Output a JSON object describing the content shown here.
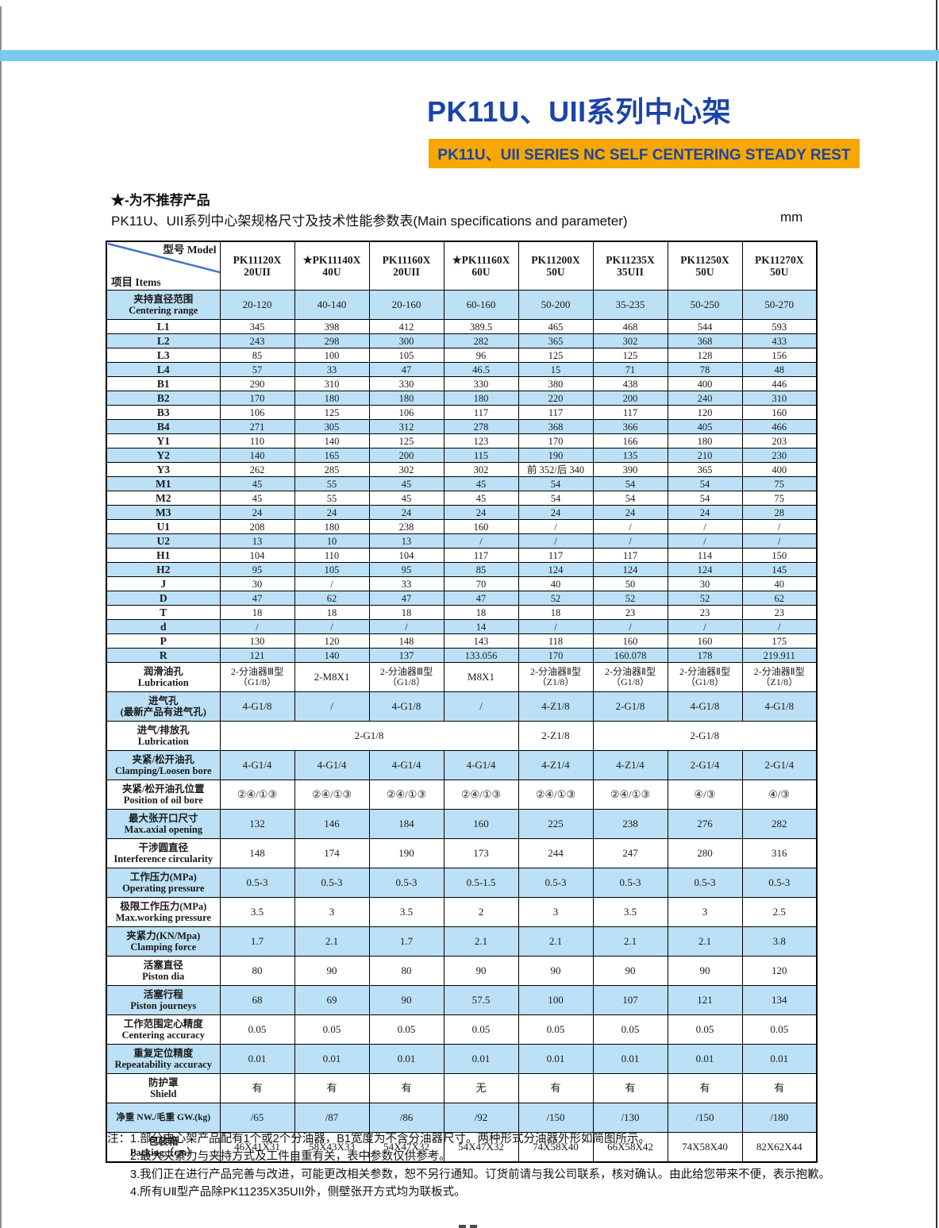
{
  "header": {
    "title_cn": "PK11U、UII系列中心架",
    "banner_en": "PK11U、UII SERIES NC SELF CENTERING STEADY REST",
    "star_note": "★-为不推荐产品",
    "table_caption": "PK11U、UII系列中心架规格尺寸及技术性能参数表(Main specifications and parameter)",
    "unit": "mm"
  },
  "colors": {
    "top_bar": "#7cc9ee",
    "banner_bg": "#f6a800",
    "title_blue": "#1b44a8",
    "row_blue": "#bce0f5",
    "diagonal_blue": "#4472c4",
    "j_value_blue": "#4472c4"
  },
  "table": {
    "corner_top": "型号 Model",
    "corner_bottom": "项目 Items",
    "columns": [
      {
        "line1": "PK11120X",
        "line2": "20UII"
      },
      {
        "line1": "★PK11140X",
        "line2": "40U"
      },
      {
        "line1": "PK11160X",
        "line2": "20UII"
      },
      {
        "line1": "★PK11160X",
        "line2": "60U"
      },
      {
        "line1": "PK11200X",
        "line2": "50U"
      },
      {
        "line1": "PK11235X",
        "line2": "35UII"
      },
      {
        "line1": "PK11250X",
        "line2": "50U"
      },
      {
        "line1": "PK11270X",
        "line2": "50U"
      }
    ],
    "rows": [
      {
        "label": "夹持直径范围\nCentering range",
        "values": [
          "20-120",
          "40-140",
          "20-160",
          "60-160",
          "50-200",
          "35-235",
          "50-250",
          "50-270"
        ]
      },
      {
        "label": "L1",
        "values": [
          "345",
          "398",
          "412",
          "389.5",
          "465",
          "468",
          "544",
          "593"
        ]
      },
      {
        "label": "L2",
        "values": [
          "243",
          "298",
          "300",
          "282",
          "365",
          "302",
          "368",
          "433"
        ]
      },
      {
        "label": "L3",
        "values": [
          "85",
          "100",
          "105",
          "96",
          "125",
          "125",
          "128",
          "156"
        ]
      },
      {
        "label": "L4",
        "values": [
          "57",
          "33",
          "47",
          "46.5",
          "15",
          "71",
          "78",
          "48"
        ]
      },
      {
        "label": "B1",
        "values": [
          "290",
          "310",
          "330",
          "330",
          "380",
          "438",
          "400",
          "446"
        ]
      },
      {
        "label": "B2",
        "values": [
          "170",
          "180",
          "180",
          "180",
          "220",
          "200",
          "240",
          "310"
        ]
      },
      {
        "label": "B3",
        "values": [
          "106",
          "125",
          "106",
          "117",
          "117",
          "117",
          "120",
          "160"
        ]
      },
      {
        "label": "B4",
        "values": [
          "271",
          "305",
          "312",
          "278",
          "368",
          "366",
          "405",
          "466"
        ]
      },
      {
        "label": "Y1",
        "values": [
          "110",
          "140",
          "125",
          "123",
          "170",
          "166",
          "180",
          "203"
        ]
      },
      {
        "label": "Y2",
        "values": [
          "140",
          "165",
          "200",
          "115",
          "190",
          "135",
          "210",
          "230"
        ]
      },
      {
        "label": "Y3",
        "values": [
          "262",
          "285",
          "302",
          "302",
          "前 352/后 340",
          "390",
          "365",
          "400"
        ]
      },
      {
        "label": "M1",
        "values": [
          "45",
          "55",
          "45",
          "45",
          "54",
          "54",
          "54",
          "75"
        ]
      },
      {
        "label": "M2",
        "values": [
          "45",
          "55",
          "45",
          "45",
          "54",
          "54",
          "54",
          "75"
        ]
      },
      {
        "label": "M3",
        "values": [
          "24",
          "24",
          "24",
          "24",
          "24",
          "24",
          "24",
          "28"
        ]
      },
      {
        "label": "U1",
        "values": [
          "208",
          "180",
          "238",
          "160",
          "/",
          "/",
          "/",
          "/"
        ]
      },
      {
        "label": "U2",
        "values": [
          "13",
          "10",
          "13",
          "/",
          "/",
          "/",
          "/",
          "/"
        ]
      },
      {
        "label": "H1",
        "values": [
          "104",
          "110",
          "104",
          "117",
          "117",
          "117",
          "114",
          "150"
        ]
      },
      {
        "label": "H2",
        "values": [
          "95",
          "105",
          "95",
          "85",
          "124",
          "124",
          "124",
          "145"
        ]
      },
      {
        "label": "J",
        "blue": true,
        "values": [
          "30",
          "/",
          "33",
          "70",
          "40",
          "50",
          "30",
          "40"
        ]
      },
      {
        "label": "D",
        "values": [
          "47",
          "62",
          "47",
          "47",
          "52",
          "52",
          "52",
          "62"
        ]
      },
      {
        "label": "T",
        "values": [
          "18",
          "18",
          "18",
          "18",
          "18",
          "23",
          "23",
          "23"
        ]
      },
      {
        "label": "d",
        "values": [
          "/",
          "/",
          "/",
          "14",
          "/",
          "/",
          "/",
          "/"
        ]
      },
      {
        "label": "P",
        "values": [
          "130",
          "120",
          "148",
          "143",
          "118",
          "160",
          "160",
          "175"
        ]
      },
      {
        "label": "R",
        "values": [
          "121",
          "140",
          "137",
          "133.056",
          "170",
          "160.078",
          "178",
          "219.911"
        ]
      },
      {
        "label": "润滑油孔\nLubrication",
        "values": [
          "2-分油器Ⅲ型\n（G1/8）",
          "2-M8X1",
          "2-分油器Ⅲ型\n（G1/8）",
          "M8X1",
          "2-分油器Ⅱ型\n（Z1/8）",
          "2-分油器Ⅱ型\n（G1/8）",
          "2-分油器Ⅱ型\n（G1/8）",
          "2-分油器Ⅱ型\n（Z1/8）"
        ]
      },
      {
        "label": "进气孔\n(最新产品有进气孔)",
        "values": [
          "4-G1/8",
          "/",
          "4-G1/8",
          "/",
          "4-Z1/8",
          "2-G1/8",
          "4-G1/8",
          "4-G1/8"
        ]
      },
      {
        "label": "进气/排放孔\nLubrication",
        "cells": [
          {
            "span": 4,
            "v": "2-G1/8"
          },
          {
            "span": 1,
            "v": "2-Z1/8"
          },
          {
            "span": 3,
            "v": "2-G1/8"
          }
        ]
      },
      {
        "label": "夹紧/松开油孔\nClamping/Loosen bore",
        "values": [
          "4-G1/4",
          "4-G1/4",
          "4-G1/4",
          "4-G1/4",
          "4-Z1/4",
          "4-Z1/4",
          "2-G1/4",
          "2-G1/4"
        ]
      },
      {
        "label": "夹紧/松开油孔位置\nPosition of oil bore",
        "values": [
          "②④/①③",
          "②④/①③",
          "②④/①③",
          "②④/①③",
          "②④/①③",
          "②④/①③",
          "④/③",
          "④/③"
        ]
      },
      {
        "label": "最大张开口尺寸\nMax.axial opening",
        "values": [
          "132",
          "146",
          "184",
          "160",
          "225",
          "238",
          "276",
          "282"
        ]
      },
      {
        "label": "干涉圆直径\nInterference circularity",
        "values": [
          "148",
          "174",
          "190",
          "173",
          "244",
          "247",
          "280",
          "316"
        ]
      },
      {
        "label": "工作压力(MPa)\nOperating pressure",
        "values": [
          "0.5-3",
          "0.5-3",
          "0.5-3",
          "0.5-1.5",
          "0.5-3",
          "0.5-3",
          "0.5-3",
          "0.5-3"
        ]
      },
      {
        "label": "极限工作压力(MPa)\nMax.working pressure",
        "values": [
          "3.5",
          "3",
          "3.5",
          "2",
          "3",
          "3.5",
          "3",
          "2.5"
        ]
      },
      {
        "label": "夹紧力(KN/Mpa)\nClamping force",
        "values": [
          "1.7",
          "2.1",
          "1.7",
          "2.1",
          "2.1",
          "2.1",
          "2.1",
          "3.8"
        ]
      },
      {
        "label": "活塞直径\nPiston dia",
        "values": [
          "80",
          "90",
          "80",
          "90",
          "90",
          "90",
          "90",
          "120"
        ]
      },
      {
        "label": "活塞行程\nPiston journeys",
        "values": [
          "68",
          "69",
          "90",
          "57.5",
          "100",
          "107",
          "121",
          "134"
        ]
      },
      {
        "label": "工作范围定心精度\nCentering accuracy",
        "values": [
          "0.05",
          "0.05",
          "0.05",
          "0.05",
          "0.05",
          "0.05",
          "0.05",
          "0.05"
        ]
      },
      {
        "label": "重复定位精度\nRepeatability accuracy",
        "values": [
          "0.01",
          "0.01",
          "0.01",
          "0.01",
          "0.01",
          "0.01",
          "0.01",
          "0.01"
        ]
      },
      {
        "label": "防护罩\nShield",
        "values": [
          "有",
          "有",
          "有",
          "无",
          "有",
          "有",
          "有",
          "有"
        ]
      },
      {
        "label": "净重 NW./毛重 GW.(kg)",
        "values": [
          "/65",
          "/87",
          "/86",
          "/92",
          "/150",
          "/130",
          "/150",
          "/180"
        ]
      },
      {
        "label": "包装箱\nPacking（cm）",
        "values": [
          "46X41X31",
          "58X43X33",
          "54X47X32",
          "54X47X32",
          "74X58X40",
          "66X58X42",
          "74X58X40",
          "82X62X44"
        ]
      }
    ]
  },
  "notes": {
    "prefix": "注：",
    "line1": "1.部分中心架产品配有1个或2个分油器，B1宽度为不含分油器尺寸。两种形式分油器外形如简图所示。",
    "line2": "2.最大夹紧力与夹持方式及工件自重有关，表中参数仅供参考。",
    "line3": "3.我们正在进行产品完善与改进，可能更改相关参数，恕不另行通知。订货前请与我公司联系，核对确认。由此给您带来不便，表示抱歉。",
    "line4": "4.所有UⅡ型产品除PK11235X35UII外，侧壁张开方式均为联板式。"
  }
}
